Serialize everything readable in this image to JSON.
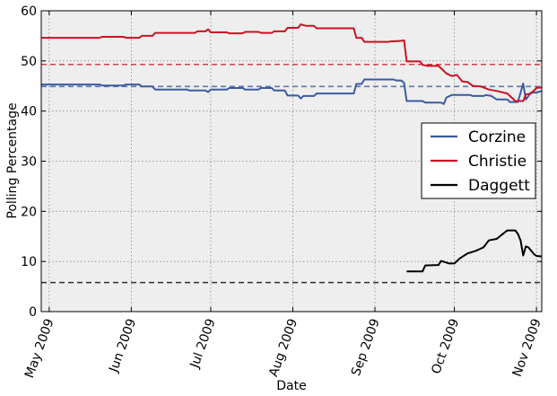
{
  "chart_data": {
    "type": "line",
    "title": "",
    "xlabel": "Date",
    "ylabel": "Polling Percentage",
    "ylim": [
      0,
      60
    ],
    "xlim": [
      "2009-04-28",
      "2009-11-03"
    ],
    "yticks": [
      0,
      10,
      20,
      30,
      40,
      50,
      60
    ],
    "xticks": [
      {
        "date": "2009-05-01",
        "label": "May 2009"
      },
      {
        "date": "2009-06-01",
        "label": "Jun 2009"
      },
      {
        "date": "2009-07-01",
        "label": "Jul 2009"
      },
      {
        "date": "2009-08-01",
        "label": "Aug 2009"
      },
      {
        "date": "2009-09-01",
        "label": "Sep 2009"
      },
      {
        "date": "2009-10-01",
        "label": "Oct 2009"
      },
      {
        "date": "2009-11-01",
        "label": "Nov 2009"
      }
    ],
    "grid": true,
    "legend_position": "right",
    "series": [
      {
        "name": "Corzine",
        "color": "#3b5aa0",
        "average": 44.9,
        "points": [
          [
            "2009-04-28",
            45.3
          ],
          [
            "2009-05-20",
            45.3
          ],
          [
            "2009-05-21",
            45.1
          ],
          [
            "2009-05-29",
            45.1
          ],
          [
            "2009-05-30",
            45.3
          ],
          [
            "2009-06-04",
            45.3
          ],
          [
            "2009-06-05",
            44.9
          ],
          [
            "2009-06-09",
            44.9
          ],
          [
            "2009-06-10",
            44.3
          ],
          [
            "2009-06-22",
            44.3
          ],
          [
            "2009-06-23",
            44.1
          ],
          [
            "2009-06-29",
            44.1
          ],
          [
            "2009-06-30",
            43.8
          ],
          [
            "2009-07-01",
            44.3
          ],
          [
            "2009-07-07",
            44.3
          ],
          [
            "2009-07-08",
            44.6
          ],
          [
            "2009-07-13",
            44.6
          ],
          [
            "2009-07-14",
            44.3
          ],
          [
            "2009-07-19",
            44.3
          ],
          [
            "2009-07-20",
            44.6
          ],
          [
            "2009-07-24",
            44.6
          ],
          [
            "2009-07-25",
            44.1
          ],
          [
            "2009-07-29",
            44.1
          ],
          [
            "2009-07-30",
            43.1
          ],
          [
            "2009-08-03",
            43.1
          ],
          [
            "2009-08-04",
            42.5
          ],
          [
            "2009-08-05",
            43.0
          ],
          [
            "2009-08-09",
            43.0
          ],
          [
            "2009-08-10",
            43.5
          ],
          [
            "2009-08-24",
            43.5
          ],
          [
            "2009-08-25",
            45.4
          ],
          [
            "2009-08-27",
            45.4
          ],
          [
            "2009-08-28",
            46.3
          ],
          [
            "2009-09-08",
            46.3
          ],
          [
            "2009-09-09",
            46.1
          ],
          [
            "2009-09-11",
            46.1
          ],
          [
            "2009-09-12",
            45.6
          ],
          [
            "2009-09-13",
            42.0
          ],
          [
            "2009-09-19",
            42.0
          ],
          [
            "2009-09-20",
            41.7
          ],
          [
            "2009-09-26",
            41.7
          ],
          [
            "2009-09-27",
            41.4
          ],
          [
            "2009-09-28",
            42.7
          ],
          [
            "2009-09-30",
            43.2
          ],
          [
            "2009-10-07",
            43.2
          ],
          [
            "2009-10-08",
            43.0
          ],
          [
            "2009-10-12",
            43.0
          ],
          [
            "2009-10-13",
            43.2
          ],
          [
            "2009-10-15",
            43.0
          ],
          [
            "2009-10-17",
            42.3
          ],
          [
            "2009-10-21",
            42.3
          ],
          [
            "2009-10-22",
            41.8
          ],
          [
            "2009-10-25",
            41.8
          ],
          [
            "2009-10-27",
            45.5
          ],
          [
            "2009-10-28",
            42.3
          ],
          [
            "2009-10-30",
            43.7
          ],
          [
            "2009-11-01",
            43.7
          ],
          [
            "2009-11-03",
            44.0
          ]
        ]
      },
      {
        "name": "Christie",
        "color": "#cc1122",
        "average": 49.3,
        "points": [
          [
            "2009-04-28",
            54.6
          ],
          [
            "2009-05-20",
            54.6
          ],
          [
            "2009-05-21",
            54.8
          ],
          [
            "2009-05-29",
            54.8
          ],
          [
            "2009-05-30",
            54.6
          ],
          [
            "2009-06-04",
            54.6
          ],
          [
            "2009-06-05",
            55.0
          ],
          [
            "2009-06-09",
            55.0
          ],
          [
            "2009-06-10",
            55.6
          ],
          [
            "2009-06-25",
            55.6
          ],
          [
            "2009-06-26",
            55.9
          ],
          [
            "2009-06-29",
            55.9
          ],
          [
            "2009-06-30",
            56.3
          ],
          [
            "2009-07-01",
            55.7
          ],
          [
            "2009-07-07",
            55.7
          ],
          [
            "2009-07-08",
            55.5
          ],
          [
            "2009-07-13",
            55.5
          ],
          [
            "2009-07-14",
            55.8
          ],
          [
            "2009-07-19",
            55.8
          ],
          [
            "2009-07-20",
            55.6
          ],
          [
            "2009-07-24",
            55.6
          ],
          [
            "2009-07-25",
            55.9
          ],
          [
            "2009-07-29",
            55.9
          ],
          [
            "2009-07-30",
            56.6
          ],
          [
            "2009-08-03",
            56.6
          ],
          [
            "2009-08-04",
            57.3
          ],
          [
            "2009-08-06",
            57.0
          ],
          [
            "2009-08-09",
            57.0
          ],
          [
            "2009-08-10",
            56.5
          ],
          [
            "2009-08-24",
            56.5
          ],
          [
            "2009-08-25",
            54.6
          ],
          [
            "2009-08-27",
            54.6
          ],
          [
            "2009-08-28",
            53.8
          ],
          [
            "2009-09-06",
            53.8
          ],
          [
            "2009-09-07",
            53.9
          ],
          [
            "2009-09-11",
            54.0
          ],
          [
            "2009-09-12",
            54.1
          ],
          [
            "2009-09-13",
            49.9
          ],
          [
            "2009-09-18",
            49.9
          ],
          [
            "2009-09-19",
            49.2
          ],
          [
            "2009-09-21",
            49.0
          ],
          [
            "2009-09-25",
            49.0
          ],
          [
            "2009-09-28",
            47.5
          ],
          [
            "2009-09-30",
            47.0
          ],
          [
            "2009-10-02",
            47.2
          ],
          [
            "2009-10-04",
            45.9
          ],
          [
            "2009-10-06",
            45.8
          ],
          [
            "2009-10-08",
            45.0
          ],
          [
            "2009-10-11",
            44.9
          ],
          [
            "2009-10-14",
            44.3
          ],
          [
            "2009-10-17",
            44.0
          ],
          [
            "2009-10-21",
            43.5
          ],
          [
            "2009-10-24",
            42.0
          ],
          [
            "2009-10-27",
            42.0
          ],
          [
            "2009-10-28",
            43.3
          ],
          [
            "2009-10-30",
            43.5
          ],
          [
            "2009-11-01",
            44.6
          ],
          [
            "2009-11-03",
            44.7
          ]
        ]
      },
      {
        "name": "Daggett",
        "color": "#000000",
        "average": 5.8,
        "points": [
          [
            "2009-09-13",
            8.0
          ],
          [
            "2009-09-19",
            8.0
          ],
          [
            "2009-09-20",
            9.2
          ],
          [
            "2009-09-25",
            9.3
          ],
          [
            "2009-09-26",
            10.1
          ],
          [
            "2009-09-29",
            9.6
          ],
          [
            "2009-10-01",
            9.6
          ],
          [
            "2009-10-03",
            10.6
          ],
          [
            "2009-10-06",
            11.6
          ],
          [
            "2009-10-09",
            12.1
          ],
          [
            "2009-10-12",
            12.8
          ],
          [
            "2009-10-14",
            14.2
          ],
          [
            "2009-10-17",
            14.5
          ],
          [
            "2009-10-20",
            15.8
          ],
          [
            "2009-10-21",
            16.2
          ],
          [
            "2009-10-24",
            16.2
          ],
          [
            "2009-10-25",
            15.5
          ],
          [
            "2009-10-26",
            14.2
          ],
          [
            "2009-10-27",
            11.2
          ],
          [
            "2009-10-28",
            13.0
          ],
          [
            "2009-10-29",
            12.8
          ],
          [
            "2009-10-31",
            11.5
          ],
          [
            "2009-11-01",
            11.1
          ],
          [
            "2009-11-03",
            11.0
          ]
        ]
      }
    ]
  }
}
